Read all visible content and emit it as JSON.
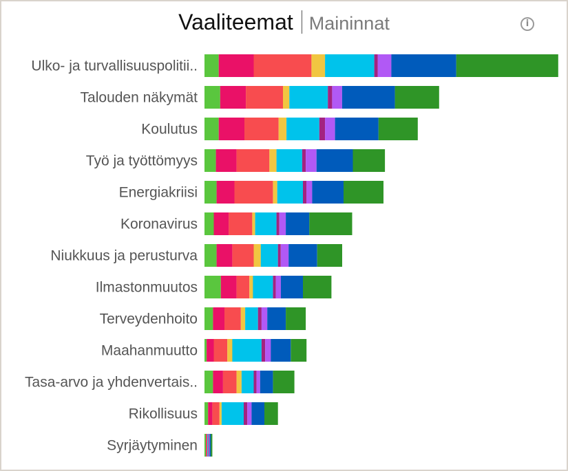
{
  "title": "Vaaliteemat",
  "subtitle": "Maininnat",
  "info_icon": "info-circle-icon",
  "colors": [
    "#5ac63e",
    "#ea1167",
    "#f84c4f",
    "#f1c641",
    "#00c3eb",
    "#a32381",
    "#b159f5",
    "#005bbb",
    "#2f9527"
  ],
  "chart_data": {
    "type": "bar",
    "orientation": "horizontal",
    "stacked": true,
    "title": "Vaaliteemat",
    "subtitle": "Maininnat",
    "xlabel": "",
    "ylabel": "",
    "xlim": [
      0,
      1000
    ],
    "grid": false,
    "legend": "none",
    "categories": [
      "Ulko- ja turvallisuuspolitii..",
      "Talouden näkymät",
      "Koulutus",
      "Työ ja työttömyys",
      "Energiakriisi",
      "Koronavirus",
      "Niukkuus ja perusturva",
      "Ilmastonmuutos",
      "Terveydenhoito",
      "Maahanmuutto",
      "Tasa-arvo ja yhdenvertais..",
      "Rikollisuus",
      "Syrjäytyminen"
    ],
    "series": [
      {
        "values": [
          40,
          44,
          40,
          32,
          34,
          26,
          34,
          46,
          24,
          6,
          24,
          10,
          4
        ]
      },
      {
        "values": [
          98,
          72,
          72,
          58,
          50,
          42,
          44,
          44,
          32,
          20,
          28,
          12,
          2
        ]
      },
      {
        "values": [
          162,
          104,
          96,
          92,
          108,
          66,
          60,
          36,
          46,
          38,
          38,
          20,
          2
        ]
      },
      {
        "values": [
          38,
          18,
          22,
          20,
          12,
          8,
          20,
          10,
          12,
          14,
          14,
          6,
          0
        ]
      },
      {
        "values": [
          138,
          108,
          92,
          72,
          72,
          60,
          48,
          56,
          36,
          82,
          34,
          62,
          2
        ]
      },
      {
        "values": [
          10,
          12,
          16,
          10,
          10,
          8,
          8,
          8,
          10,
          10,
          8,
          10,
          2
        ]
      },
      {
        "values": [
          38,
          28,
          28,
          30,
          16,
          18,
          22,
          14,
          16,
          16,
          10,
          12,
          2
        ]
      },
      {
        "values": [
          182,
          148,
          122,
          102,
          88,
          66,
          80,
          62,
          52,
          56,
          36,
          36,
          4
        ]
      },
      {
        "values": [
          286,
          124,
          110,
          90,
          112,
          120,
          70,
          80,
          56,
          44,
          60,
          38,
          4
        ]
      }
    ]
  }
}
